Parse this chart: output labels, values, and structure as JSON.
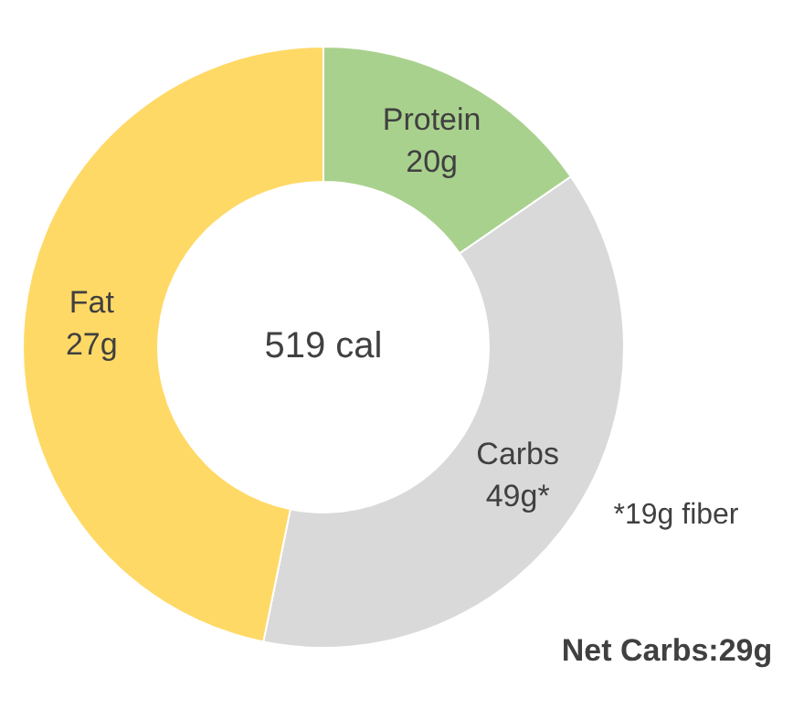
{
  "chart_data": {
    "type": "donut",
    "categories": [
      "Protein 20g",
      "Carbs 49g*",
      "Fat 27g"
    ],
    "values": [
      15.4,
      37.8,
      46.8
    ],
    "colors": [
      "#a9d18e",
      "#d9d9d9",
      "#ffd966"
    ],
    "legend": false,
    "annotations": [
      "519 cal",
      "*19g fiber",
      "Net Carbs:29g"
    ]
  }
}
